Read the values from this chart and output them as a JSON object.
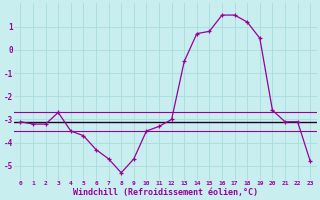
{
  "background_color": "#c8eef0",
  "grid_color": "#aadddd",
  "line_color": "#990099",
  "line_color_dark": "#220022",
  "xlabel": "Windchill (Refroidissement éolien,°C)",
  "xlim": [
    -0.5,
    23.5
  ],
  "ylim": [
    -5.6,
    2.0
  ],
  "yticks": [
    -5,
    -4,
    -3,
    -2,
    -1,
    0,
    1
  ],
  "xticks": [
    0,
    1,
    2,
    3,
    4,
    5,
    6,
    7,
    8,
    9,
    10,
    11,
    12,
    13,
    14,
    15,
    16,
    17,
    18,
    19,
    20,
    21,
    22,
    23
  ],
  "windchill": [
    -3.1,
    -3.2,
    -3.2,
    -2.7,
    -3.5,
    -3.7,
    -4.3,
    -4.7,
    -5.3,
    -4.7,
    -3.5,
    -3.3,
    -3.0,
    -0.5,
    0.7,
    0.8,
    1.5,
    1.5,
    1.2,
    0.5,
    -2.6,
    -3.1,
    -3.1,
    -4.8
  ],
  "hline1_y": -2.7,
  "hline2_y": -3.1,
  "hline3_y": -3.5
}
